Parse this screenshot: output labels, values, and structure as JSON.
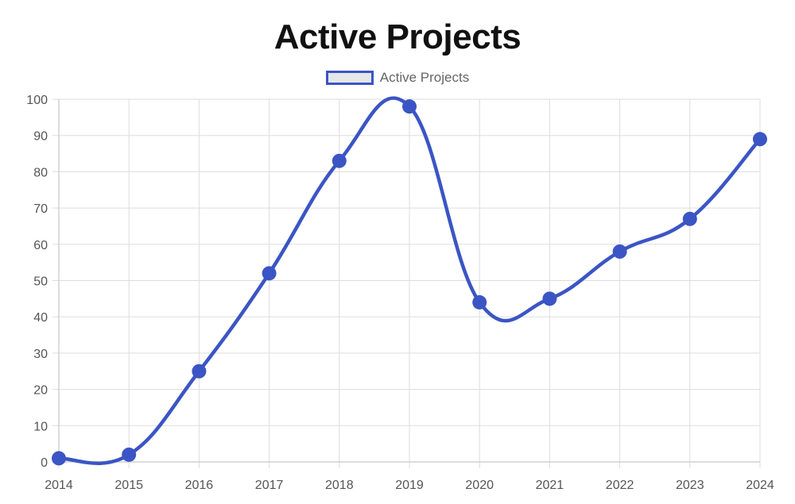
{
  "chart_data": {
    "type": "line",
    "title": "Active Projects",
    "legend": {
      "position": "top-center",
      "entries": [
        "Active Projects"
      ]
    },
    "categories": [
      "2014",
      "2015",
      "2016",
      "2017",
      "2018",
      "2019",
      "2020",
      "2021",
      "2022",
      "2023",
      "2024"
    ],
    "series": [
      {
        "name": "Active Projects",
        "values": [
          1,
          2,
          25,
          52,
          83,
          98,
          44,
          45,
          58,
          67,
          89
        ]
      }
    ],
    "ylim": [
      0,
      100
    ],
    "yticks": [
      0,
      10,
      20,
      30,
      40,
      50,
      60,
      70,
      80,
      90,
      100
    ],
    "xlabel": "",
    "ylabel": "",
    "grid": true,
    "colors": {
      "line": "#3b55c4",
      "grid": "#dddddd",
      "legend_fill": "#e5e6ea"
    }
  }
}
